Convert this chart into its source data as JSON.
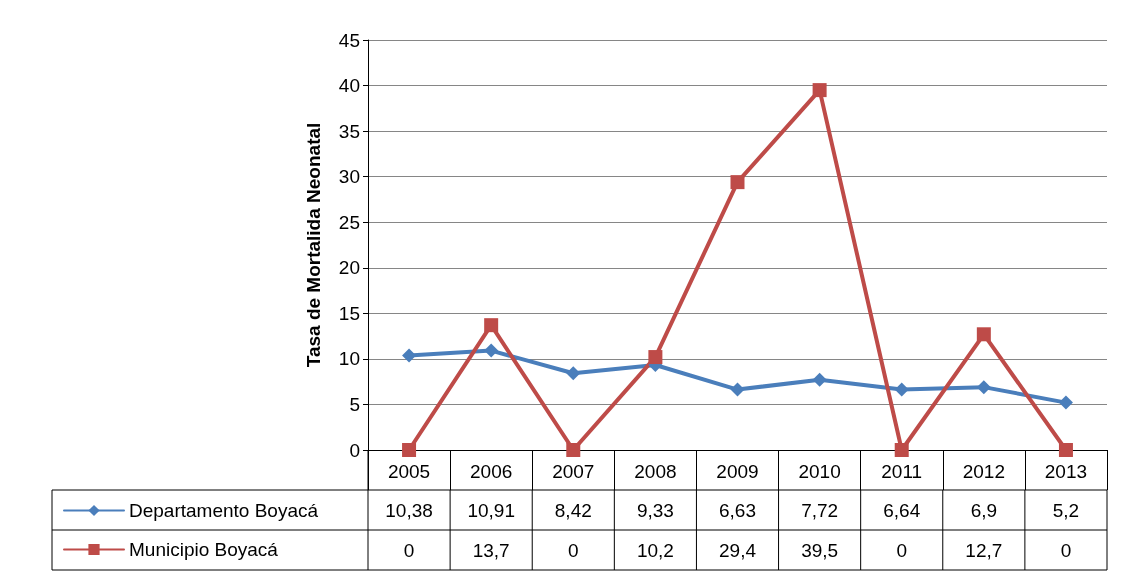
{
  "chart_data": {
    "type": "line",
    "ylabel": "Tasa de Mortalida Neonatal",
    "categories": [
      "2005",
      "2006",
      "2007",
      "2008",
      "2009",
      "2010",
      "2011",
      "2012",
      "2013"
    ],
    "series": [
      {
        "name": "Departamento Boyacá",
        "color": "#4a7ebb",
        "marker": "diamond",
        "values": [
          10.38,
          10.91,
          8.42,
          9.33,
          6.63,
          7.72,
          6.64,
          6.9,
          5.2
        ],
        "value_labels": [
          "10,38",
          "10,91",
          "8,42",
          "9,33",
          "6,63",
          "7,72",
          "6,64",
          "6,9",
          "5,2"
        ]
      },
      {
        "name": "Municipio Boyacá",
        "color": "#be4b48",
        "marker": "square",
        "values": [
          0,
          13.7,
          0,
          10.2,
          29.4,
          39.5,
          0,
          12.7,
          0
        ],
        "value_labels": [
          "0",
          "13,7",
          "0",
          "10,2",
          "29,4",
          "39,5",
          "0",
          "12,7",
          "0"
        ]
      }
    ],
    "ylim": [
      0,
      45
    ],
    "yticks": [
      0,
      5,
      10,
      15,
      20,
      25,
      30,
      35,
      40,
      45
    ],
    "grid": "y",
    "legend": "bottom"
  }
}
